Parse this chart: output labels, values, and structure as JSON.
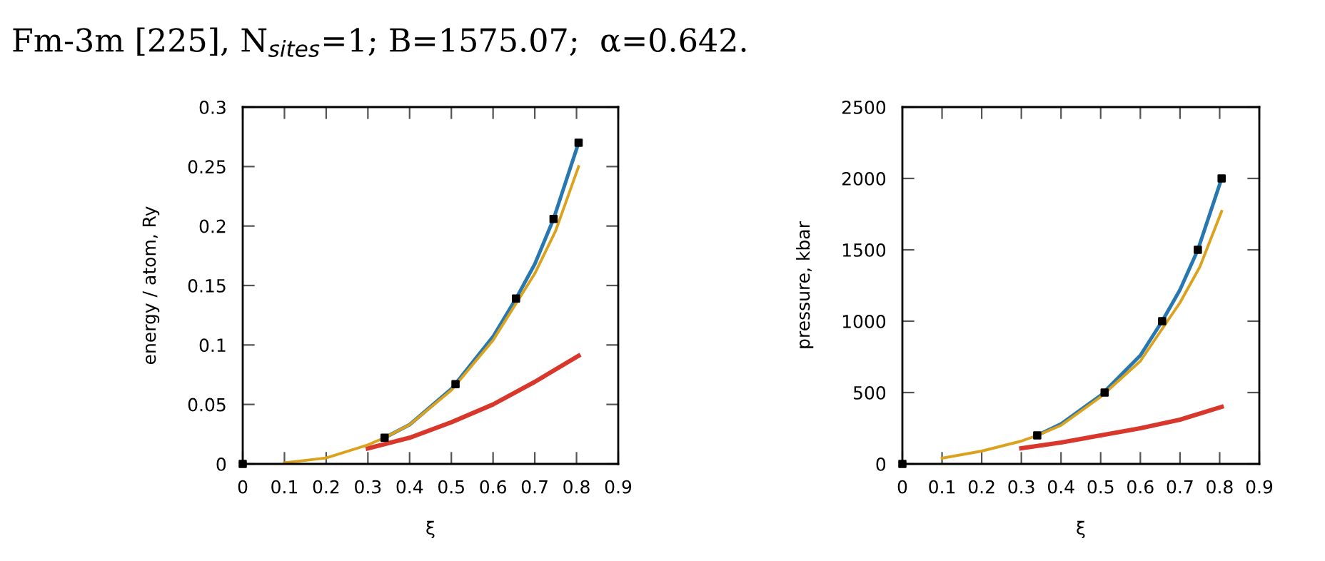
{
  "chart_data": [
    {
      "type": "line",
      "title": "Fm-3m [225], N$_{sites}$=1; B=1575.07;  α=0.642.",
      "xlabel": "ξ",
      "ylabel": "energy / atom, Ry",
      "xlim": [
        0,
        0.9
      ],
      "xticks": [
        0,
        0.1,
        0.2,
        0.3,
        0.4,
        0.5,
        0.6,
        0.7,
        0.8,
        0.9
      ],
      "ylim": [
        0,
        0.3
      ],
      "yticks": [
        0,
        0.05,
        0.1,
        0.15,
        0.2,
        0.25,
        0.3
      ],
      "grid": false,
      "legend": false,
      "series": [
        {
          "color": "#d9372b",
          "x": [
            0.3,
            0.4,
            0.5,
            0.6,
            0.7,
            0.805
          ],
          "values": [
            0.013,
            0.022,
            0.035,
            0.05,
            0.069,
            0.091
          ]
        },
        {
          "color": "#2777b0",
          "x": [
            0.34,
            0.4,
            0.5,
            0.6,
            0.655,
            0.7,
            0.745,
            0.805
          ],
          "values": [
            0.022,
            0.033,
            0.063,
            0.107,
            0.139,
            0.168,
            0.206,
            0.27
          ]
        },
        {
          "color": "#dba21e",
          "x": [
            0.1,
            0.2,
            0.3,
            0.34,
            0.4,
            0.5,
            0.6,
            0.7,
            0.75,
            0.805
          ],
          "values": [
            0.001,
            0.005,
            0.016,
            0.022,
            0.033,
            0.062,
            0.104,
            0.16,
            0.196,
            0.25
          ]
        },
        {
          "type": "scatter",
          "color": "#000000",
          "marker": "square",
          "x": [
            0,
            0.34,
            0.51,
            0.655,
            0.745,
            0.805
          ],
          "values": [
            0,
            0.022,
            0.067,
            0.139,
            0.206,
            0.27
          ]
        }
      ]
    },
    {
      "type": "line",
      "xlabel": "ξ",
      "ylabel": "pressure, kbar",
      "xlim": [
        0,
        0.9
      ],
      "xticks": [
        0,
        0.1,
        0.2,
        0.3,
        0.4,
        0.5,
        0.6,
        0.7,
        0.8,
        0.9
      ],
      "ylim": [
        0,
        2500
      ],
      "yticks": [
        0,
        500,
        1000,
        1500,
        2000,
        2500
      ],
      "grid": false,
      "legend": false,
      "series": [
        {
          "color": "#d9372b",
          "x": [
            0.3,
            0.4,
            0.5,
            0.6,
            0.7,
            0.805
          ],
          "values": [
            110,
            150,
            200,
            250,
            310,
            400
          ]
        },
        {
          "color": "#2777b0",
          "x": [
            0.34,
            0.4,
            0.5,
            0.6,
            0.655,
            0.7,
            0.745,
            0.805
          ],
          "values": [
            200,
            280,
            480,
            760,
            1000,
            1220,
            1500,
            2000
          ]
        },
        {
          "color": "#dba21e",
          "x": [
            0.1,
            0.2,
            0.3,
            0.34,
            0.4,
            0.5,
            0.6,
            0.7,
            0.75,
            0.805
          ],
          "values": [
            40,
            90,
            160,
            200,
            270,
            470,
            720,
            1130,
            1380,
            1770
          ]
        },
        {
          "type": "scatter",
          "color": "#000000",
          "marker": "square",
          "x": [
            0,
            0.34,
            0.51,
            0.655,
            0.745,
            0.805
          ],
          "values": [
            0,
            200,
            500,
            1000,
            1500,
            2000
          ]
        }
      ]
    }
  ]
}
